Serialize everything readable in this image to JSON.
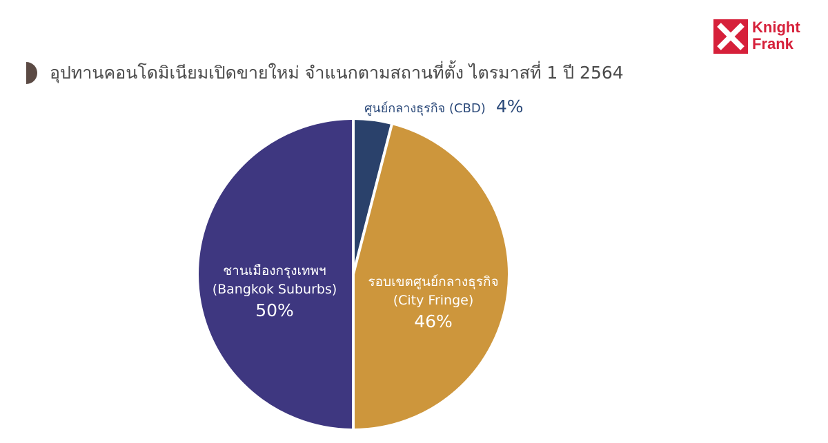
{
  "brand": {
    "line1": "Knight",
    "line2": "Frank",
    "color": "#d6203a"
  },
  "header": {
    "title": "อุปทานคอนโดมิเนียมเปิดขายใหม่ จำแนกตามสถานที่ตั้ง ไตรมาสที่ 1 ปี 2564",
    "accent_color": "#5b4a44"
  },
  "chart_data": {
    "type": "pie",
    "title": "อุปทานคอนโดมิเนียมเปิดขายใหม่ จำแนกตามสถานที่ตั้ง ไตรมาสที่ 1 ปี 2564",
    "slices": [
      {
        "label": "ศูนย์กลางธุรกิจ (CBD)",
        "label_th": "ศูนย์กลางธุรกิจ (CBD)",
        "label_en": "",
        "value": 4,
        "value_label": "4%",
        "color": "#2a416b"
      },
      {
        "label": "รอบเขตศูนย์กลางธุรกิจ (City Fringe)",
        "label_th": "รอบเขตศูนย์กลางธุรกิจ",
        "label_en": "(City Fringe)",
        "value": 46,
        "value_label": "46%",
        "color": "#cd963c"
      },
      {
        "label": "ชานเมืองกรุงเทพฯ (Bangkok Suburbs)",
        "label_th": "ชานเมืองกรุงเทพฯ",
        "label_en": "(Bangkok Suburbs)",
        "value": 50,
        "value_label": "50%",
        "color": "#3e3780"
      }
    ],
    "start_angle": "12 o'clock",
    "direction": "clockwise",
    "legend": "none"
  }
}
